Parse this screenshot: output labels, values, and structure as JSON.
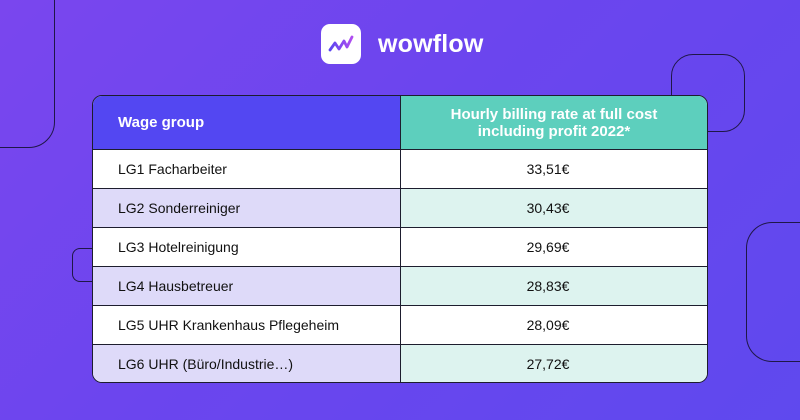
{
  "brand": {
    "name": "wowflow",
    "logo_icon": "wave-check-icon",
    "colors": {
      "background": "#6b45ee",
      "header_left": "#5347f2",
      "header_right": "#5dcfbd",
      "row_alt_left": "#dedaf9",
      "row_alt_right": "#ddf3ef"
    }
  },
  "table": {
    "headers": {
      "group": "Wage group",
      "rate": "Hourly billing rate at full cost including profit 2022*"
    },
    "rows": [
      {
        "group": "LG1 Facharbeiter",
        "rate": "33,51€"
      },
      {
        "group": "LG2 Sonderreiniger",
        "rate": "30,43€"
      },
      {
        "group": "LG3 Hotelreinigung",
        "rate": "29,69€"
      },
      {
        "group": "LG4 Hausbetreuer",
        "rate": "28,83€"
      },
      {
        "group": "LG5 UHR Krankenhaus Pflegeheim",
        "rate": "28,09€"
      },
      {
        "group": "LG6 UHR (Büro/Industrie…)",
        "rate": "27,72€"
      }
    ]
  }
}
